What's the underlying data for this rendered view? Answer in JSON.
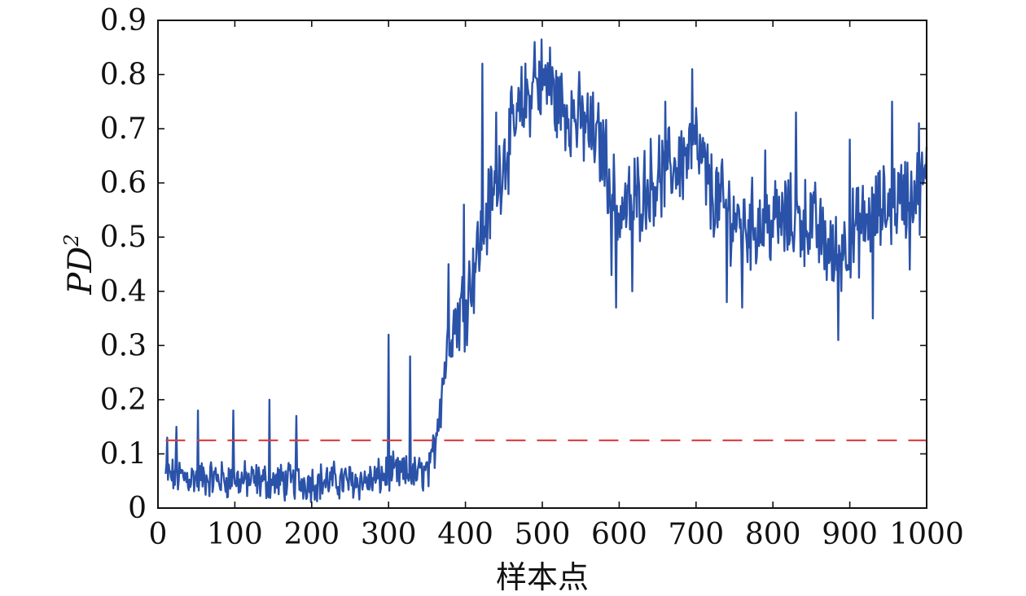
{
  "chart_data": {
    "type": "line",
    "xlabel": "样本点",
    "ylabel": "PD",
    "ylabel_superscript": "2",
    "xlim": [
      0,
      1000
    ],
    "ylim": [
      0,
      0.9
    ],
    "x_ticks": [
      "0",
      "100",
      "200",
      "300",
      "400",
      "500",
      "600",
      "700",
      "800",
      "900",
      "1000"
    ],
    "y_ticks": [
      "0",
      "0.1",
      "0.2",
      "0.3",
      "0.4",
      "0.5",
      "0.6",
      "0.7",
      "0.8",
      "0.9"
    ],
    "grid": false,
    "series": [
      {
        "style": "solid",
        "color": "#2a52a8",
        "x_start": 10,
        "x_step": 1,
        "x_end": 1000,
        "trend_points": [
          [
            10,
            0.06
          ],
          [
            60,
            0.055
          ],
          [
            120,
            0.05
          ],
          [
            180,
            0.048
          ],
          [
            240,
            0.05
          ],
          [
            280,
            0.05
          ],
          [
            300,
            0.065
          ],
          [
            330,
            0.06
          ],
          [
            355,
            0.07
          ],
          [
            365,
            0.18
          ],
          [
            380,
            0.33
          ],
          [
            400,
            0.38
          ],
          [
            420,
            0.5
          ],
          [
            450,
            0.65
          ],
          [
            480,
            0.76
          ],
          [
            500,
            0.79
          ],
          [
            520,
            0.75
          ],
          [
            560,
            0.7
          ],
          [
            580,
            0.66
          ],
          [
            600,
            0.54
          ],
          [
            640,
            0.6
          ],
          [
            680,
            0.64
          ],
          [
            700,
            0.67
          ],
          [
            720,
            0.58
          ],
          [
            760,
            0.52
          ],
          [
            800,
            0.53
          ],
          [
            850,
            0.53
          ],
          [
            880,
            0.46
          ],
          [
            900,
            0.5
          ],
          [
            950,
            0.56
          ],
          [
            1000,
            0.6
          ]
        ],
        "spikes": [
          [
            12,
            0.13
          ],
          [
            24,
            0.15
          ],
          [
            52,
            0.18
          ],
          [
            98,
            0.18
          ],
          [
            145,
            0.2
          ],
          [
            180,
            0.17
          ],
          [
            300,
            0.32
          ],
          [
            328,
            0.28
          ],
          [
            378,
            0.45
          ],
          [
            398,
            0.56
          ],
          [
            422,
            0.82
          ],
          [
            440,
            0.73
          ],
          [
            490,
            0.86
          ],
          [
            510,
            0.85
          ],
          [
            555,
            0.73
          ],
          [
            590,
            0.43
          ],
          [
            596,
            0.37
          ],
          [
            617,
            0.4
          ],
          [
            660,
            0.75
          ],
          [
            695,
            0.81
          ],
          [
            740,
            0.38
          ],
          [
            760,
            0.37
          ],
          [
            790,
            0.66
          ],
          [
            830,
            0.73
          ],
          [
            885,
            0.31
          ],
          [
            900,
            0.68
          ],
          [
            930,
            0.35
          ],
          [
            955,
            0.75
          ],
          [
            978,
            0.44
          ],
          [
            990,
            0.71
          ]
        ]
      },
      {
        "style": "dashed",
        "color": "#d93b3b",
        "x": [
          10,
          1000
        ],
        "y": [
          0.125,
          0.125
        ]
      }
    ]
  }
}
